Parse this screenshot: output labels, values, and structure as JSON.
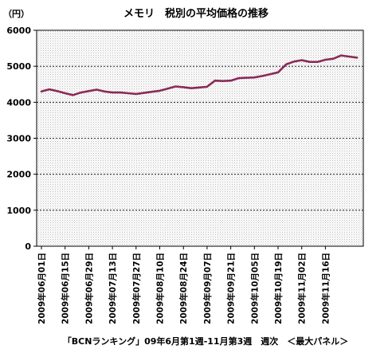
{
  "chart_data": {
    "type": "line",
    "title": "メモリ　税別の平均価格の推移",
    "y_unit": "（円）",
    "caption": "「BCNランキング」09年6月第1週-11月第3週　週次　＜最大パネル＞",
    "ylim": [
      0,
      6000
    ],
    "y_ticks": [
      "0",
      "1000",
      "2000",
      "3000",
      "4000",
      "5000",
      "6000"
    ],
    "x_tick_labels": [
      "2009年06月01日",
      "2009年06月15日",
      "2009年06月29日",
      "2009年07月13日",
      "2009年07月27日",
      "2009年08月10日",
      "2009年08月24日",
      "2009年09月07日",
      "2009年09月21日",
      "2009年10月05日",
      "2009年10月19日",
      "2009年11月02日",
      "2009年11月16日"
    ],
    "grid": "horizontal dashed",
    "series_color": "#8b2a5a",
    "series": [
      {
        "values": [
          4300,
          4360,
          4310,
          4250,
          4200,
          4270,
          4310,
          4350,
          4300,
          4270,
          4270,
          4250,
          4230,
          4260,
          4290,
          4320,
          4380,
          4440,
          4420,
          4390,
          4410,
          4430,
          4600,
          4590,
          4600,
          4670,
          4680,
          4690,
          4730,
          4780,
          4830,
          5050,
          5130,
          5170,
          5120,
          5120,
          5180,
          5210,
          5300,
          5270,
          5240
        ]
      }
    ]
  }
}
